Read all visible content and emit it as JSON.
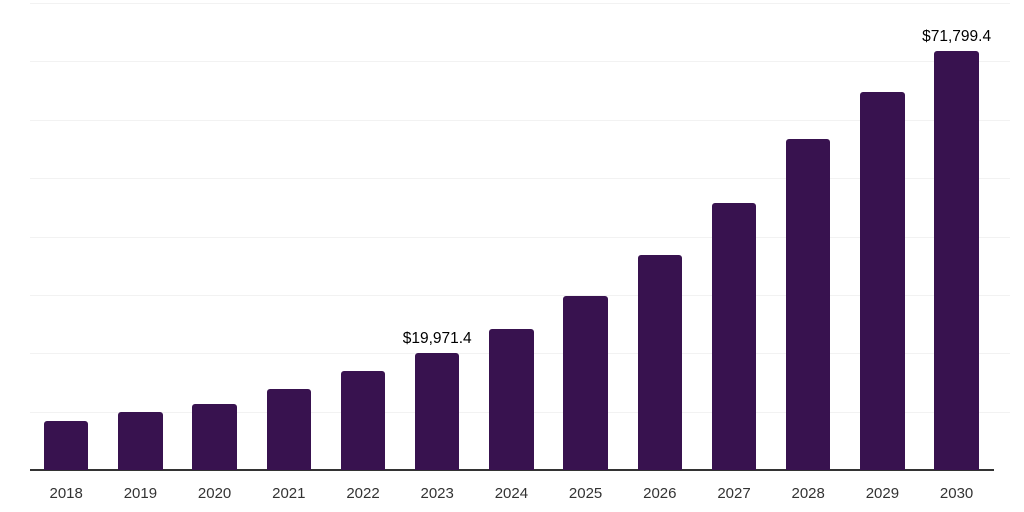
{
  "chart_data": {
    "type": "bar",
    "title": "",
    "xlabel": "",
    "ylabel": "",
    "categories": [
      "2018",
      "2019",
      "2020",
      "2021",
      "2022",
      "2023",
      "2024",
      "2025",
      "2026",
      "2027",
      "2028",
      "2029",
      "2030"
    ],
    "values": [
      8350,
      9900,
      11250,
      13800,
      16880,
      19971.4,
      24200,
      29830,
      36820,
      45680,
      56760,
      64770,
      71799.4
    ],
    "value_labels": [
      {
        "index": 5,
        "text": "$19,971.4"
      },
      {
        "index": 12,
        "text": "$71,799.4"
      }
    ],
    "ylim": [
      0,
      80000
    ],
    "gridline_interval": 10000,
    "grid": "horizontal",
    "legend": "none",
    "y_axis_tick_labels": "none",
    "colors": {
      "bar": "#38124F",
      "axis": "#333333",
      "gridline": "#F2F2F2",
      "tick_label": "#333333",
      "data_label": "#000000",
      "background": "#FFFFFF"
    }
  }
}
